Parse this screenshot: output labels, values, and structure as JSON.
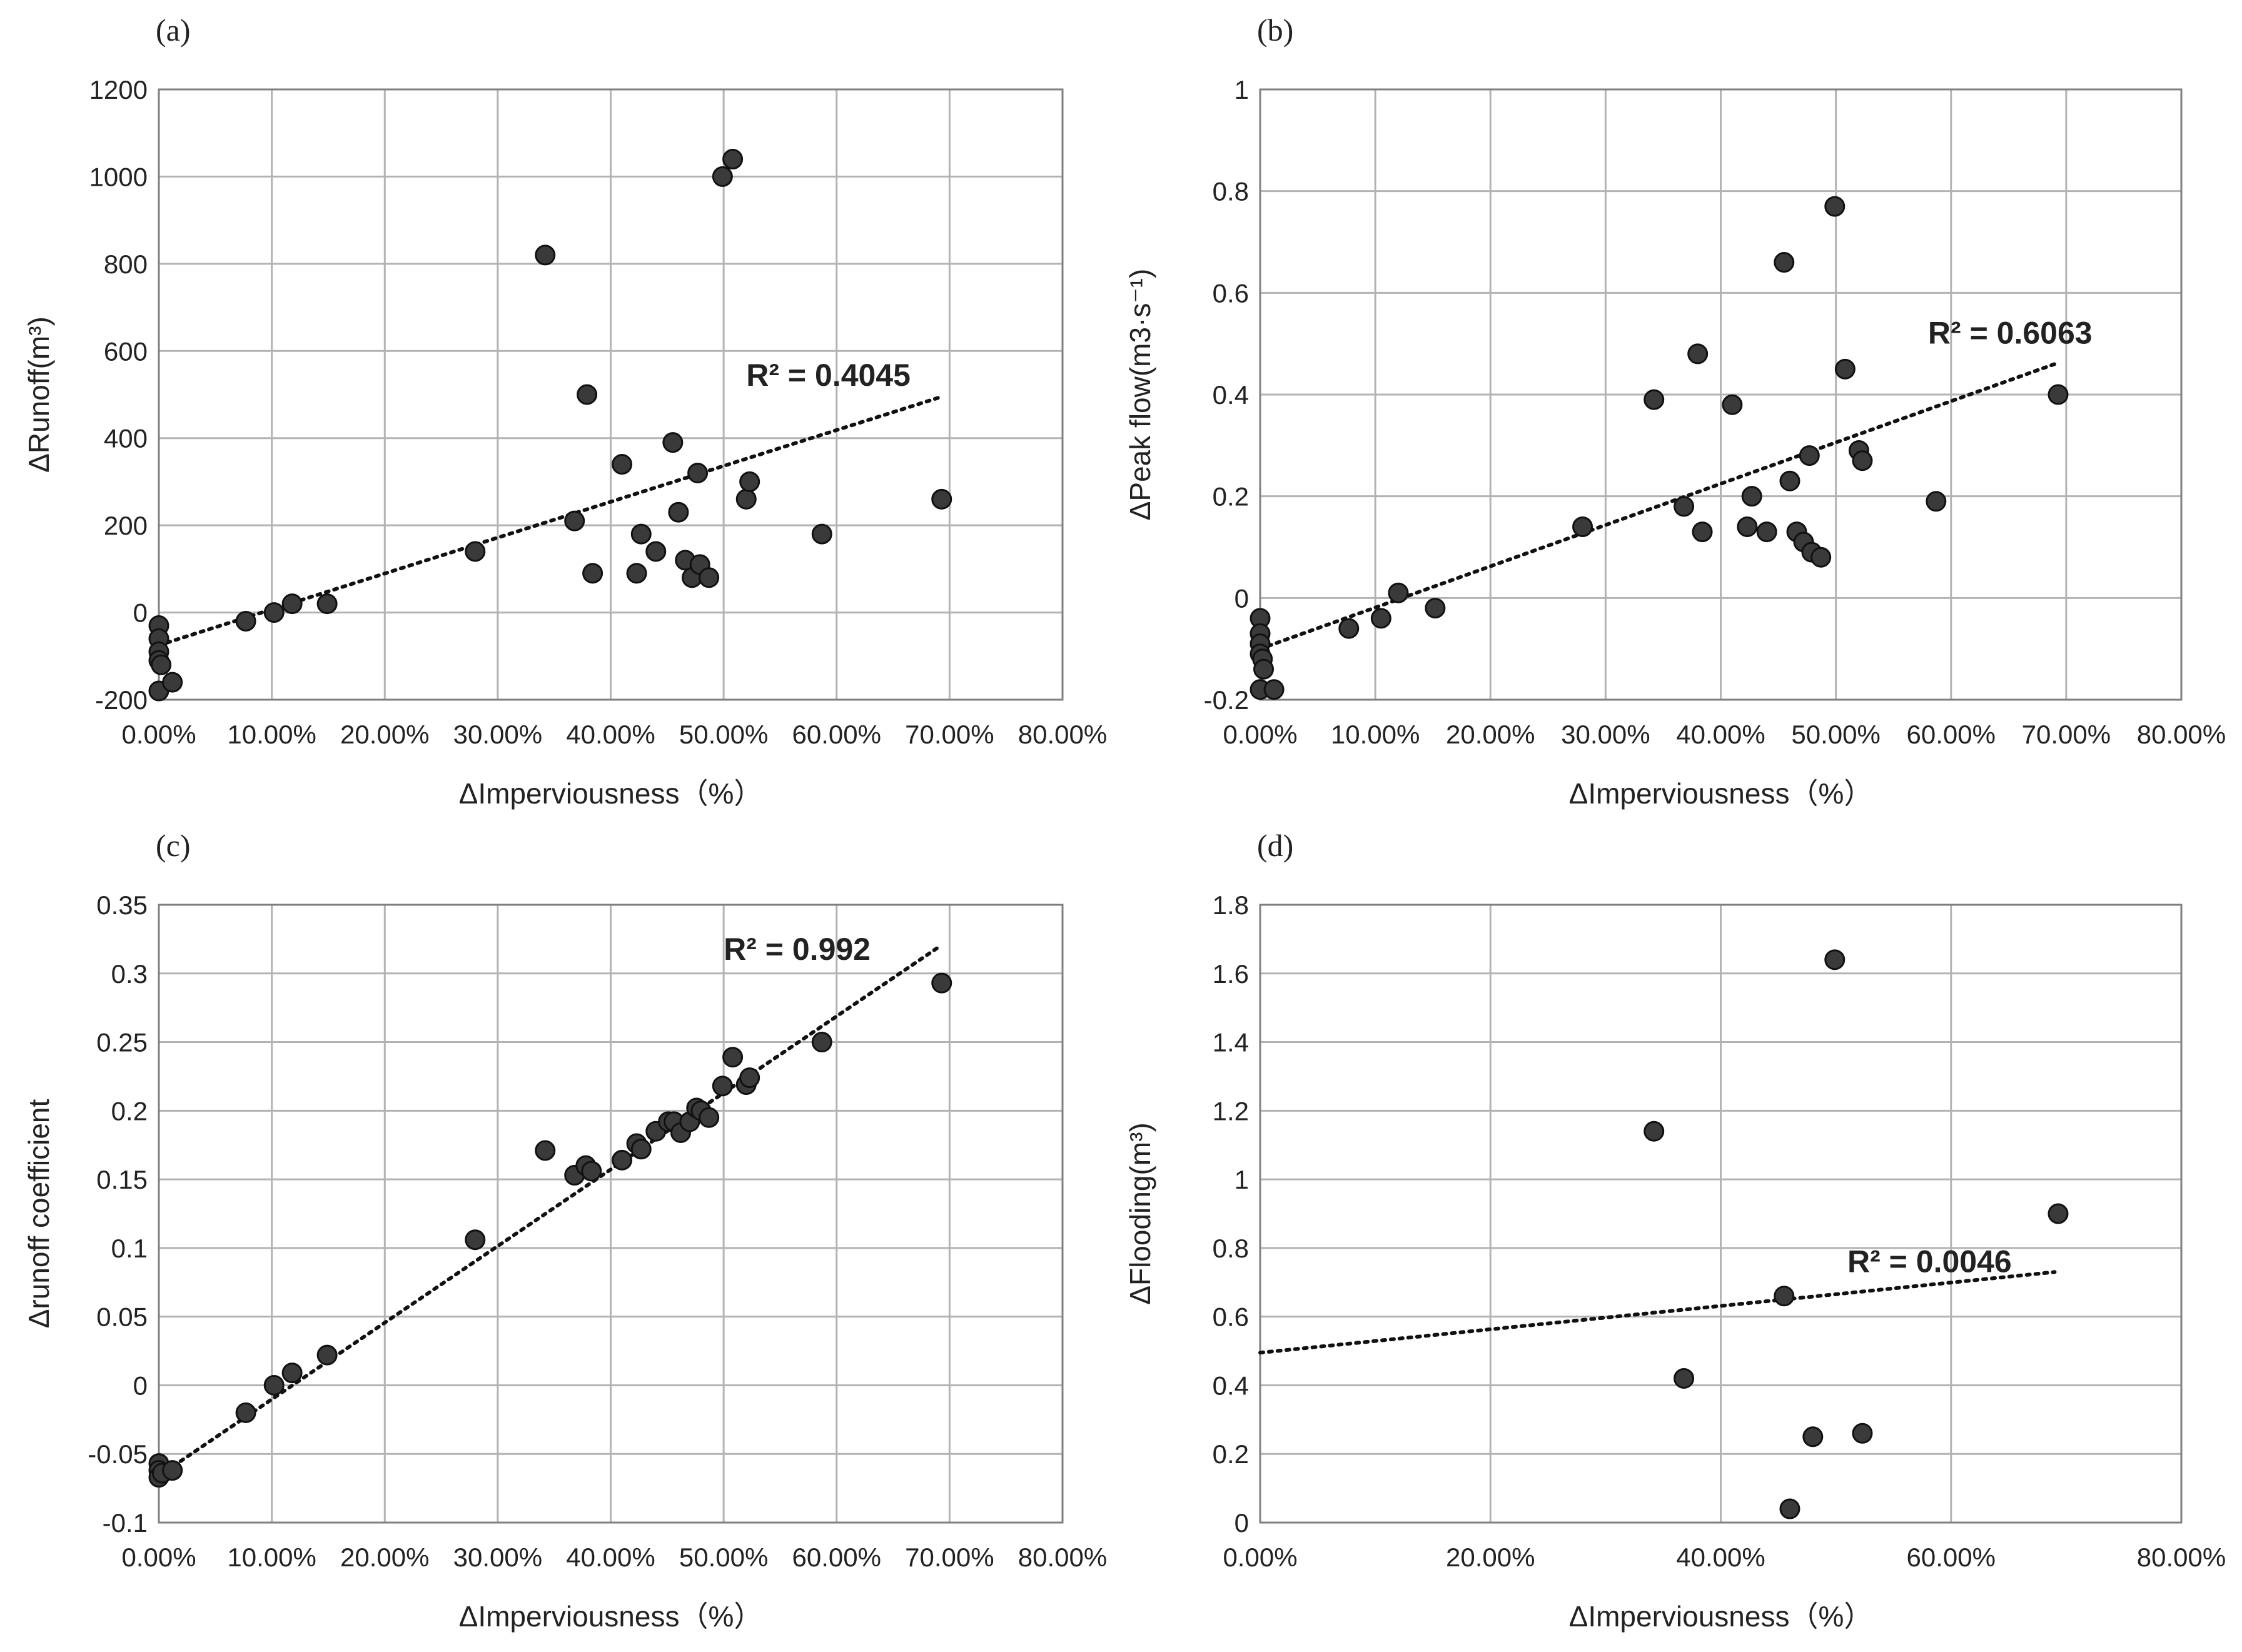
{
  "colors": {
    "background": "#ffffff",
    "grid": "#b3b3b3",
    "axis": "#7f7f7f",
    "marker_fill": "#3a3a3a",
    "marker_stroke": "#111111",
    "trendline": "#111111",
    "text": "#222222"
  },
  "chart_data": [
    {
      "id": "a",
      "panel_label": "(a)",
      "type": "scatter",
      "xlabel": "ΔImperviousness（%）",
      "ylabel": "ΔRunoff(m³)",
      "xlim": [
        0,
        0.8
      ],
      "ylim": [
        -200,
        1200
      ],
      "xticks": [
        0,
        0.1,
        0.2,
        0.3,
        0.4,
        0.5,
        0.6,
        0.7,
        0.8
      ],
      "xtick_labels": [
        "0.00%",
        "10.00%",
        "20.00%",
        "30.00%",
        "40.00%",
        "50.00%",
        "60.00%",
        "70.00%",
        "80.00%"
      ],
      "yticks": [
        -200,
        0,
        200,
        400,
        600,
        800,
        1000,
        1200
      ],
      "ytick_labels": [
        "-200",
        "0",
        "200",
        "400",
        "600",
        "800",
        "1000",
        "1200"
      ],
      "grid": true,
      "points": [
        {
          "x": 0.0,
          "y": -30
        },
        {
          "x": 0.0,
          "y": -60
        },
        {
          "x": 0.0,
          "y": -90
        },
        {
          "x": 0.0,
          "y": -110
        },
        {
          "x": 0.002,
          "y": -120
        },
        {
          "x": 0.0,
          "y": -180
        },
        {
          "x": 0.012,
          "y": -160
        },
        {
          "x": 0.077,
          "y": -20
        },
        {
          "x": 0.102,
          "y": 0
        },
        {
          "x": 0.118,
          "y": 20
        },
        {
          "x": 0.149,
          "y": 20
        },
        {
          "x": 0.28,
          "y": 140
        },
        {
          "x": 0.342,
          "y": 820
        },
        {
          "x": 0.368,
          "y": 210
        },
        {
          "x": 0.379,
          "y": 500
        },
        {
          "x": 0.384,
          "y": 90
        },
        {
          "x": 0.41,
          "y": 340
        },
        {
          "x": 0.423,
          "y": 90
        },
        {
          "x": 0.427,
          "y": 180
        },
        {
          "x": 0.44,
          "y": 140
        },
        {
          "x": 0.455,
          "y": 390
        },
        {
          "x": 0.46,
          "y": 230
        },
        {
          "x": 0.466,
          "y": 120
        },
        {
          "x": 0.472,
          "y": 80
        },
        {
          "x": 0.477,
          "y": 320
        },
        {
          "x": 0.479,
          "y": 110
        },
        {
          "x": 0.487,
          "y": 80
        },
        {
          "x": 0.499,
          "y": 1000
        },
        {
          "x": 0.508,
          "y": 1040
        },
        {
          "x": 0.52,
          "y": 260
        },
        {
          "x": 0.523,
          "y": 300
        },
        {
          "x": 0.587,
          "y": 180
        },
        {
          "x": 0.693,
          "y": 260
        }
      ],
      "trendline": {
        "type": "linear",
        "x_start": 0.0,
        "x_end": 0.693,
        "y_start": -75,
        "y_end": 495
      },
      "annotation": {
        "text": "R² = 0.4045",
        "x": 0.52,
        "y": 520
      }
    },
    {
      "id": "b",
      "panel_label": "(b)",
      "type": "scatter",
      "xlabel": "ΔImperviousness（%）",
      "ylabel": "ΔPeak flow(m3·s⁻¹)",
      "xlim": [
        0,
        0.8
      ],
      "ylim": [
        -0.2,
        1
      ],
      "xticks": [
        0,
        0.1,
        0.2,
        0.3,
        0.4,
        0.5,
        0.6,
        0.7,
        0.8
      ],
      "xtick_labels": [
        "0.00%",
        "10.00%",
        "20.00%",
        "30.00%",
        "40.00%",
        "50.00%",
        "60.00%",
        "70.00%",
        "80.00%"
      ],
      "yticks": [
        -0.2,
        0,
        0.2,
        0.4,
        0.6,
        0.8,
        1
      ],
      "ytick_labels": [
        "-0.2",
        "0",
        "0.2",
        "0.4",
        "0.6",
        "0.8",
        "1"
      ],
      "grid": true,
      "points": [
        {
          "x": 0.0,
          "y": -0.04
        },
        {
          "x": 0.0,
          "y": -0.07
        },
        {
          "x": 0.0,
          "y": -0.09
        },
        {
          "x": 0.0,
          "y": -0.11
        },
        {
          "x": 0.002,
          "y": -0.12
        },
        {
          "x": 0.003,
          "y": -0.14
        },
        {
          "x": 0.0,
          "y": -0.18
        },
        {
          "x": 0.012,
          "y": -0.18
        },
        {
          "x": 0.077,
          "y": -0.06
        },
        {
          "x": 0.105,
          "y": -0.04
        },
        {
          "x": 0.12,
          "y": 0.01
        },
        {
          "x": 0.152,
          "y": -0.02
        },
        {
          "x": 0.28,
          "y": 0.14
        },
        {
          "x": 0.342,
          "y": 0.39
        },
        {
          "x": 0.368,
          "y": 0.18
        },
        {
          "x": 0.38,
          "y": 0.48
        },
        {
          "x": 0.384,
          "y": 0.13
        },
        {
          "x": 0.41,
          "y": 0.38
        },
        {
          "x": 0.423,
          "y": 0.14
        },
        {
          "x": 0.427,
          "y": 0.2
        },
        {
          "x": 0.44,
          "y": 0.13
        },
        {
          "x": 0.455,
          "y": 0.66
        },
        {
          "x": 0.46,
          "y": 0.23
        },
        {
          "x": 0.466,
          "y": 0.13
        },
        {
          "x": 0.472,
          "y": 0.11
        },
        {
          "x": 0.477,
          "y": 0.28
        },
        {
          "x": 0.479,
          "y": 0.09
        },
        {
          "x": 0.487,
          "y": 0.08
        },
        {
          "x": 0.499,
          "y": 0.77
        },
        {
          "x": 0.508,
          "y": 0.45
        },
        {
          "x": 0.52,
          "y": 0.29
        },
        {
          "x": 0.523,
          "y": 0.27
        },
        {
          "x": 0.587,
          "y": 0.19
        },
        {
          "x": 0.693,
          "y": 0.4
        }
      ],
      "trendline": {
        "type": "linear",
        "x_start": 0.0,
        "x_end": 0.69,
        "y_start": -0.1,
        "y_end": 0.46
      },
      "annotation": {
        "text": "R² = 0.6063",
        "x": 0.58,
        "y": 0.5
      }
    },
    {
      "id": "c",
      "panel_label": "(c)",
      "type": "scatter",
      "xlabel": "ΔImperviousness（%）",
      "ylabel": "Δrunoff coefficient",
      "xlim": [
        0,
        0.8
      ],
      "ylim": [
        -0.1,
        0.35
      ],
      "xticks": [
        0,
        0.1,
        0.2,
        0.3,
        0.4,
        0.5,
        0.6,
        0.7,
        0.8
      ],
      "xtick_labels": [
        "0.00%",
        "10.00%",
        "20.00%",
        "30.00%",
        "40.00%",
        "50.00%",
        "60.00%",
        "70.00%",
        "80.00%"
      ],
      "yticks": [
        -0.1,
        -0.05,
        0,
        0.05,
        0.1,
        0.15,
        0.2,
        0.25,
        0.3,
        0.35
      ],
      "ytick_labels": [
        "-0.1",
        "-0.05",
        "0",
        "0.05",
        "0.1",
        "0.15",
        "0.2",
        "0.25",
        "0.3",
        "0.35"
      ],
      "grid": true,
      "points": [
        {
          "x": 0.0,
          "y": -0.057
        },
        {
          "x": 0.0,
          "y": -0.062
        },
        {
          "x": 0.0,
          "y": -0.067
        },
        {
          "x": 0.003,
          "y": -0.064
        },
        {
          "x": 0.012,
          "y": -0.062
        },
        {
          "x": 0.077,
          "y": -0.02
        },
        {
          "x": 0.102,
          "y": 0.0
        },
        {
          "x": 0.118,
          "y": 0.009
        },
        {
          "x": 0.149,
          "y": 0.022
        },
        {
          "x": 0.28,
          "y": 0.106
        },
        {
          "x": 0.342,
          "y": 0.171
        },
        {
          "x": 0.368,
          "y": 0.153
        },
        {
          "x": 0.378,
          "y": 0.16
        },
        {
          "x": 0.383,
          "y": 0.156
        },
        {
          "x": 0.41,
          "y": 0.164
        },
        {
          "x": 0.423,
          "y": 0.176
        },
        {
          "x": 0.427,
          "y": 0.172
        },
        {
          "x": 0.44,
          "y": 0.185
        },
        {
          "x": 0.451,
          "y": 0.192
        },
        {
          "x": 0.456,
          "y": 0.192
        },
        {
          "x": 0.462,
          "y": 0.184
        },
        {
          "x": 0.47,
          "y": 0.192
        },
        {
          "x": 0.476,
          "y": 0.202
        },
        {
          "x": 0.48,
          "y": 0.2
        },
        {
          "x": 0.487,
          "y": 0.195
        },
        {
          "x": 0.499,
          "y": 0.218
        },
        {
          "x": 0.508,
          "y": 0.239
        },
        {
          "x": 0.52,
          "y": 0.219
        },
        {
          "x": 0.523,
          "y": 0.224
        },
        {
          "x": 0.587,
          "y": 0.25
        },
        {
          "x": 0.693,
          "y": 0.293
        }
      ],
      "trendline": {
        "type": "linear",
        "x_start": 0.0,
        "x_end": 0.69,
        "y_start": -0.066,
        "y_end": 0.319
      },
      "annotation": {
        "text": "R² = 0.992",
        "x": 0.5,
        "y": 0.31
      }
    },
    {
      "id": "d",
      "panel_label": "(d)",
      "type": "scatter",
      "xlabel": "ΔImperviousness（%）",
      "ylabel": "ΔFlooding(m³)",
      "xlim": [
        0,
        0.8
      ],
      "ylim": [
        0,
        1.8
      ],
      "xticks": [
        0,
        0.2,
        0.4,
        0.6,
        0.8
      ],
      "xtick_labels": [
        "0.00%",
        "20.00%",
        "40.00%",
        "60.00%",
        "80.00%"
      ],
      "yticks": [
        0,
        0.2,
        0.4,
        0.6,
        0.8,
        1,
        1.2,
        1.4,
        1.6,
        1.8
      ],
      "ytick_labels": [
        "0",
        "0.2",
        "0.4",
        "0.6",
        "0.8",
        "1",
        "1.2",
        "1.4",
        "1.6",
        "1.8"
      ],
      "grid": true,
      "points": [
        {
          "x": 0.342,
          "y": 1.14
        },
        {
          "x": 0.368,
          "y": 0.42
        },
        {
          "x": 0.455,
          "y": 0.66
        },
        {
          "x": 0.46,
          "y": 0.04
        },
        {
          "x": 0.48,
          "y": 0.25
        },
        {
          "x": 0.499,
          "y": 1.64
        },
        {
          "x": 0.523,
          "y": 0.26
        },
        {
          "x": 0.693,
          "y": 0.9
        }
      ],
      "trendline": {
        "type": "linear",
        "x_start": 0.0,
        "x_end": 0.69,
        "y_start": 0.495,
        "y_end": 0.73
      },
      "annotation": {
        "text": "R² = 0.0046",
        "x": 0.51,
        "y": 0.73
      }
    }
  ]
}
